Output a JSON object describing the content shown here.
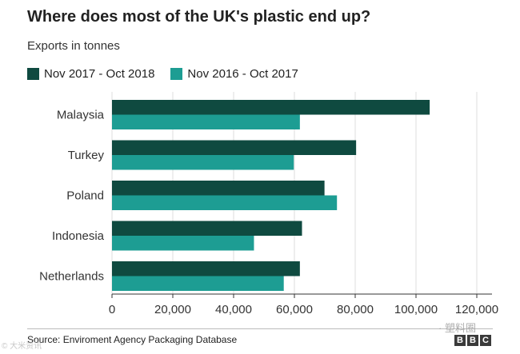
{
  "colors": {
    "series1": "#0f4a40",
    "series2": "#1d9d93",
    "grid": "#dcdcdc",
    "axis": "#333333"
  },
  "chart_data": {
    "type": "bar",
    "orientation": "horizontal",
    "title": "Where does most of the UK's plastic end up?",
    "subtitle": "Exports in tonnes",
    "categories": [
      "Malaysia",
      "Turkey",
      "Poland",
      "Indonesia",
      "Netherlands"
    ],
    "series": [
      {
        "name": "Nov 2017 - Oct 2018",
        "values": [
          104500,
          80300,
          69900,
          62500,
          61800
        ]
      },
      {
        "name": "Nov 2016 - Oct 2017",
        "values": [
          61800,
          59800,
          74000,
          46700,
          56500
        ]
      }
    ],
    "xlim": [
      0,
      125000
    ],
    "xticks": [
      0,
      20000,
      40000,
      60000,
      80000,
      100000,
      120000
    ],
    "xtick_labels": [
      "0",
      "20,000",
      "40,000",
      "60,000",
      "80,000",
      "100,000",
      "120,000"
    ],
    "grid": true,
    "legend_position": "top-left"
  },
  "source": "Source: Enviroment Agency Packaging Database",
  "brand": [
    "B",
    "B",
    "C"
  ],
  "watermark_right": "· 塑料圈",
  "watermark_left": "© 大米资讯"
}
